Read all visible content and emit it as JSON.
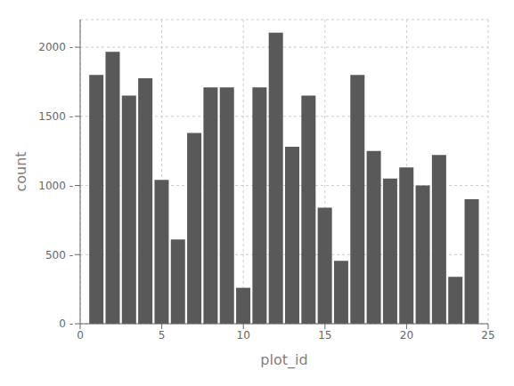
{
  "chart_data": {
    "type": "bar",
    "x": [
      1,
      2,
      3,
      4,
      5,
      6,
      7,
      8,
      9,
      10,
      11,
      12,
      13,
      14,
      15,
      16,
      17,
      18,
      19,
      20,
      21,
      22,
      23,
      24
    ],
    "values": [
      1800,
      1967,
      1650,
      1775,
      1040,
      610,
      1380,
      1710,
      1710,
      260,
      1710,
      2105,
      1280,
      1650,
      840,
      455,
      1800,
      1250,
      1050,
      1130,
      1000,
      1220,
      340,
      900
    ],
    "color": "#595959",
    "xlabel": "plot_id",
    "ylabel": "count",
    "xlim": [
      0,
      25
    ],
    "ylim": [
      0,
      2200
    ],
    "xticks": [
      0,
      5,
      10,
      15,
      20,
      25
    ],
    "yticks": [
      {
        "value": 0,
        "label": "0 -"
      },
      {
        "value": 500,
        "label": "500 -"
      },
      {
        "value": 1000,
        "label": "1000 -"
      },
      {
        "value": 1500,
        "label": "1500 -"
      },
      {
        "value": 2000,
        "label": "2000 -"
      }
    ],
    "grid": true
  }
}
